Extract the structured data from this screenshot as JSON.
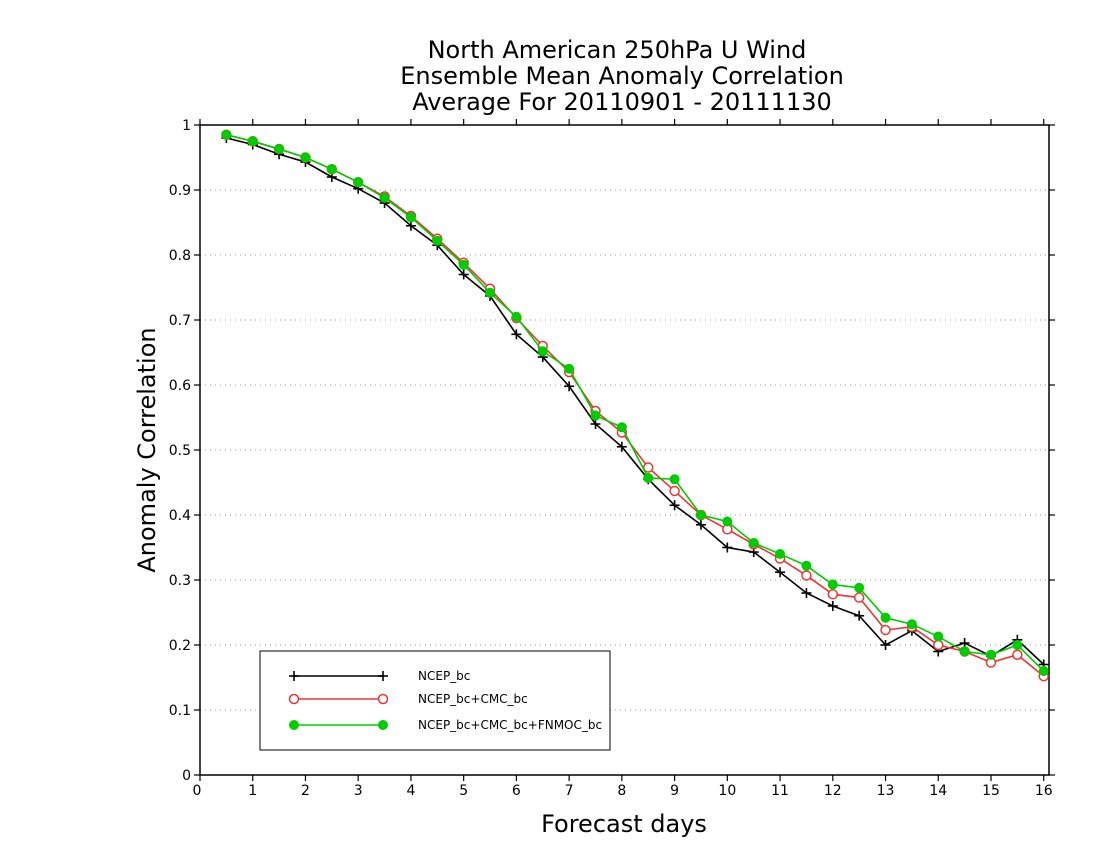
{
  "chart_data": {
    "type": "line",
    "title": [
      "North American 250hPa U Wind",
      "Ensemble Mean Anomaly Correlation",
      "Average For 20110901 - 20111130"
    ],
    "xlabel": "Forecast days",
    "ylabel": "Anomaly Correlation",
    "xlim": [
      0,
      16.1
    ],
    "ylim": [
      0,
      1
    ],
    "xticks": [
      0,
      1,
      2,
      3,
      4,
      5,
      6,
      7,
      8,
      9,
      10,
      11,
      12,
      13,
      14,
      15,
      16
    ],
    "xtick_labels": [
      "0",
      "1",
      "2",
      "3",
      "4",
      "5",
      "6",
      "7",
      "8",
      "9",
      "10",
      "11",
      "12",
      "13",
      "14",
      "15",
      "16"
    ],
    "yticks": [
      0,
      0.1,
      0.2,
      0.3,
      0.4,
      0.5,
      0.6,
      0.7,
      0.8,
      0.9,
      1
    ],
    "ytick_labels": [
      "0",
      "0.1",
      "0.2",
      "0.3",
      "0.4",
      "0.5",
      "0.6",
      "0.7",
      "0.8",
      "0.9",
      "1"
    ],
    "grid": true,
    "legend_position": "bottom-left",
    "x": [
      0.5,
      1,
      1.5,
      2,
      2.5,
      3,
      3.5,
      4,
      4.5,
      5,
      5.5,
      6,
      6.5,
      7,
      7.5,
      8,
      8.5,
      9,
      9.5,
      10,
      10.5,
      11,
      11.5,
      12,
      12.5,
      13,
      13.5,
      14,
      14.5,
      15,
      15.5,
      16
    ],
    "series": [
      {
        "name": "NCEP_bc",
        "color": "#000000",
        "marker": "plus",
        "values": [
          0.98,
          0.97,
          0.955,
          0.943,
          0.92,
          0.902,
          0.88,
          0.845,
          0.815,
          0.77,
          0.737,
          0.678,
          0.643,
          0.598,
          0.54,
          0.505,
          0.455,
          0.415,
          0.385,
          0.35,
          0.343,
          0.312,
          0.28,
          0.26,
          0.245,
          0.2,
          0.222,
          0.19,
          0.203,
          0.183,
          0.208,
          0.17
        ]
      },
      {
        "name": "NCEP_bc+CMC_bc",
        "color": "#ee3333",
        "marker": "open-circle",
        "values": [
          0.985,
          0.975,
          0.963,
          0.95,
          0.932,
          0.912,
          0.89,
          0.86,
          0.825,
          0.788,
          0.748,
          0.703,
          0.66,
          0.62,
          0.56,
          0.527,
          0.473,
          0.437,
          0.4,
          0.378,
          0.355,
          0.333,
          0.307,
          0.278,
          0.273,
          0.223,
          0.228,
          0.2,
          0.19,
          0.173,
          0.185,
          0.152
        ]
      },
      {
        "name": "NCEP_bc+CMC_bc+FNMOC_bc",
        "color": "#00cc00",
        "marker": "filled-circle",
        "values": [
          0.985,
          0.975,
          0.963,
          0.95,
          0.932,
          0.912,
          0.888,
          0.858,
          0.822,
          0.785,
          0.742,
          0.705,
          0.652,
          0.625,
          0.553,
          0.535,
          0.457,
          0.455,
          0.4,
          0.39,
          0.357,
          0.34,
          0.322,
          0.293,
          0.288,
          0.242,
          0.232,
          0.213,
          0.19,
          0.185,
          0.2,
          0.16
        ]
      }
    ]
  }
}
